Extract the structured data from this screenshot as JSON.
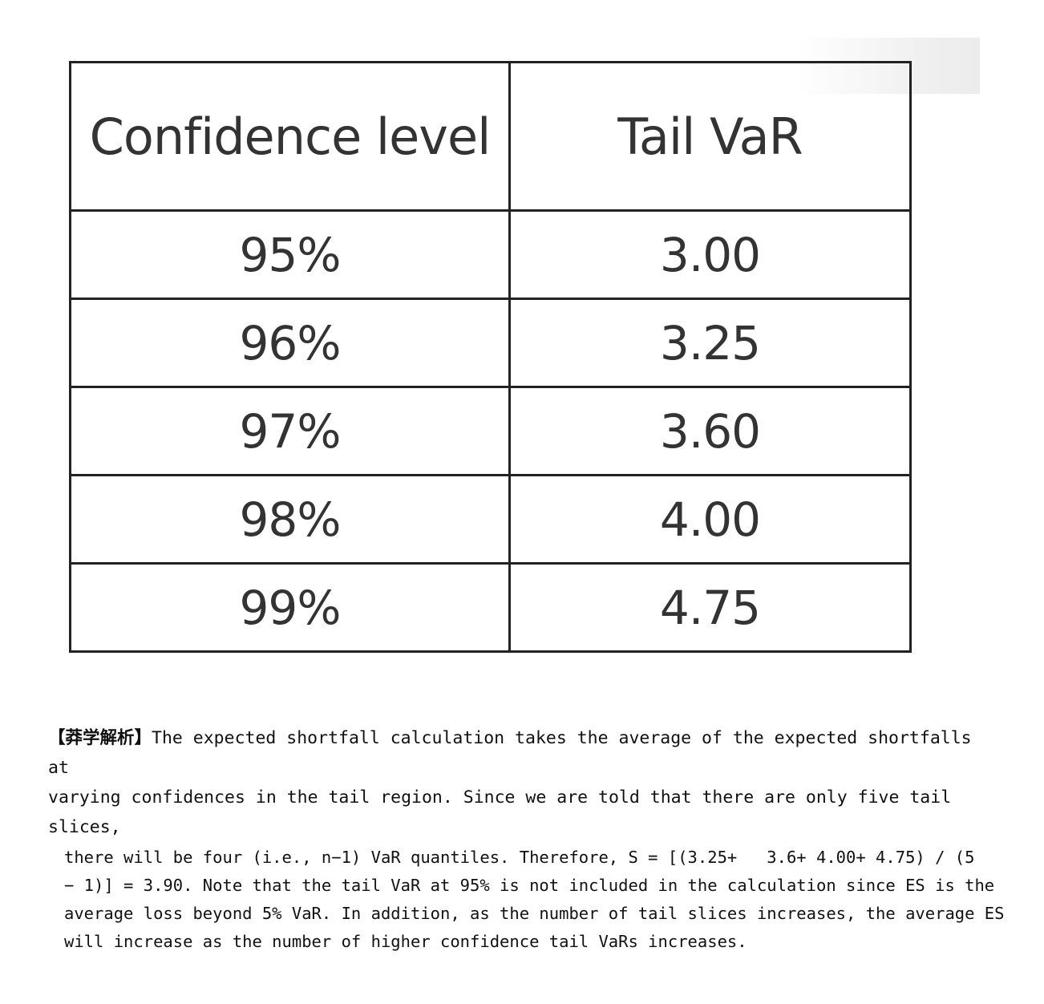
{
  "table": {
    "headers": [
      "Confidence level",
      "Tail VaR"
    ],
    "rows": [
      [
        "95%",
        "3.00"
      ],
      [
        "96%",
        "3.25"
      ],
      [
        "97%",
        "3.60"
      ],
      [
        "98%",
        "4.00"
      ],
      [
        "99%",
        "4.75"
      ]
    ]
  },
  "analysis": {
    "tag": "【莽学解析】",
    "line1": "The expected shortfall calculation takes the average of the expected shortfalls at",
    "line2": "varying confidences in the tail region. Since we are told that there are only five tail slices,",
    "body_lines": [
      "there will be four (i.e., n−1) VaR quantiles. Therefore, S = [(3.25+   3.6+ 4.00+ 4.75) / (5",
      "− 1)] = 3.90. Note that the tail VaR at 95% is not included in the calculation since ES is the",
      "average loss beyond 5% VaR. In addition, as the number of tail slices increases, the average ES",
      "will increase as the number of higher confidence tail VaRs increases."
    ]
  }
}
